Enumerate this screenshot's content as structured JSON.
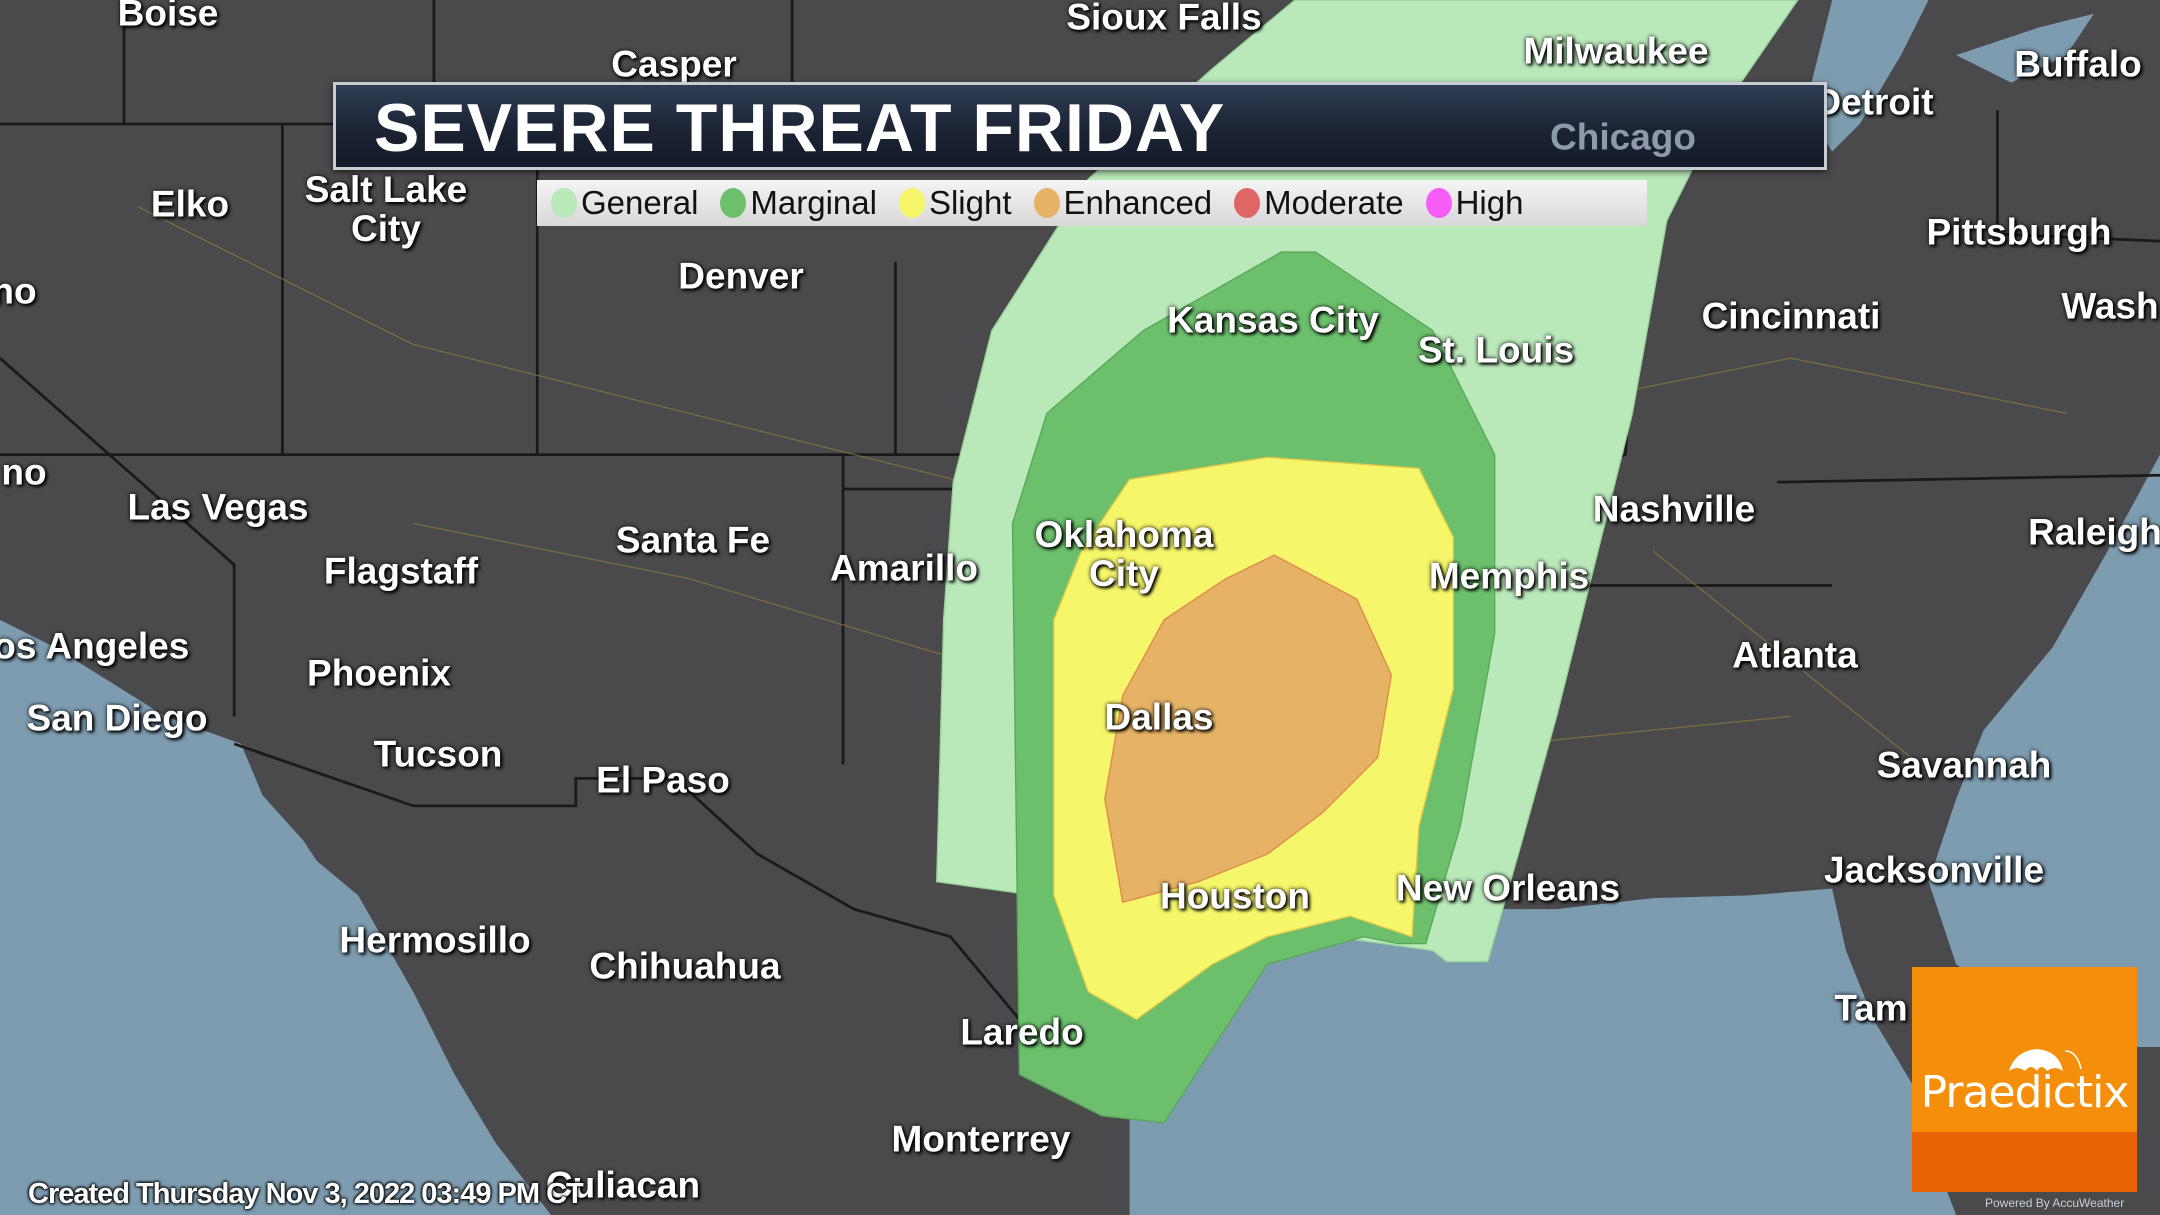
{
  "title": "SEVERE THREAT FRIDAY",
  "legend": [
    {
      "label": "General",
      "color": "#b9e8b9"
    },
    {
      "label": "Marginal",
      "color": "#6cc06c"
    },
    {
      "label": "Slight",
      "color": "#f6f66a"
    },
    {
      "label": "Enhanced",
      "color": "#e6b366"
    },
    {
      "label": "Moderate",
      "color": "#e06666"
    },
    {
      "label": "High",
      "color": "#f55df5"
    }
  ],
  "cities": [
    "Boise",
    "Sioux Falls",
    "Casper",
    "Milwaukee",
    "Buffalo",
    "Detroit",
    "Chicago",
    "Elko",
    "Salt Lake City",
    "Denver",
    "Kansas City",
    "St. Louis",
    "Cincinnati",
    "Pittsburgh",
    "Wash",
    "Las Vegas",
    "Santa Fe",
    "Amarillo",
    "Oklahoma City",
    "Nashville",
    "Memphis",
    "Raleigh",
    "Flagstaff",
    "Los Angeles",
    "Phoenix",
    "Atlanta",
    "San Diego",
    "Dallas",
    "Tucson",
    "El Paso",
    "Savannah",
    "Houston",
    "New Orleans",
    "Jacksonville",
    "Hermosillo",
    "Chihuahua",
    "Tam",
    "Laredo",
    "Monterrey",
    "Culiacan",
    "no",
    "no"
  ],
  "footer": "Created Thursday Nov  3, 2022 03:49 PM CT",
  "logo": {
    "name": "Praedictix",
    "powered_by": "Powered By AccuWeather"
  },
  "colors": {
    "land": "#4a4a4c",
    "water": "#7d9cb0"
  }
}
